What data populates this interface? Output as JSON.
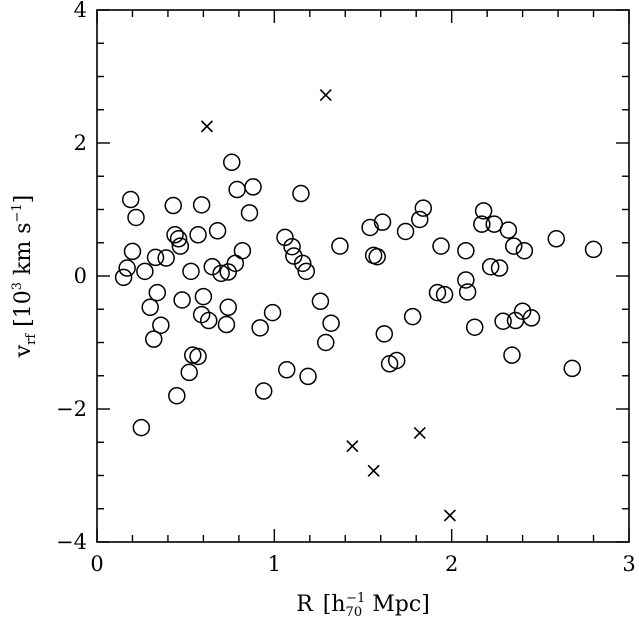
{
  "chart_data": {
    "type": "scatter",
    "xlabel_main": "R",
    "xlabel_unit_open": "[h",
    "xlabel_sub": "70",
    "xlabel_sup": "−1",
    "xlabel_unit_close": " Mpc]",
    "ylabel_main": "v",
    "ylabel_sub": "rf",
    "ylabel_unit_open": " [10",
    "ylabel_sup1": "3",
    "ylabel_unit_mid": " km s",
    "ylabel_sup2": "−1",
    "ylabel_unit_close": "]",
    "xlim": [
      0,
      3
    ],
    "ylim": [
      -4,
      4
    ],
    "x_major_ticks": [
      0,
      1,
      2,
      3
    ],
    "x_tick_labels": [
      "0",
      "1",
      "2",
      "3"
    ],
    "y_major_ticks": [
      -4,
      -2,
      0,
      2,
      4
    ],
    "y_tick_labels": [
      "−4",
      "−2",
      "0",
      "2",
      "4"
    ],
    "x_minor_step": 0.2,
    "y_minor_step": 0.5,
    "grid": false,
    "series": [
      {
        "marker": "circle",
        "points": [
          [
            0.15,
            -0.02
          ],
          [
            0.17,
            0.12
          ],
          [
            0.19,
            1.15
          ],
          [
            0.2,
            0.37
          ],
          [
            0.22,
            0.88
          ],
          [
            0.25,
            -2.28
          ],
          [
            0.27,
            0.07
          ],
          [
            0.3,
            -0.47
          ],
          [
            0.32,
            -0.95
          ],
          [
            0.33,
            0.28
          ],
          [
            0.34,
            -0.25
          ],
          [
            0.36,
            -0.74
          ],
          [
            0.39,
            0.27
          ],
          [
            0.43,
            1.06
          ],
          [
            0.44,
            0.62
          ],
          [
            0.45,
            -1.8
          ],
          [
            0.46,
            0.56
          ],
          [
            0.47,
            0.45
          ],
          [
            0.48,
            -0.36
          ],
          [
            0.52,
            -1.45
          ],
          [
            0.53,
            0.07
          ],
          [
            0.54,
            -1.19
          ],
          [
            0.57,
            -1.21
          ],
          [
            0.57,
            0.62
          ],
          [
            0.59,
            1.07
          ],
          [
            0.59,
            -0.58
          ],
          [
            0.6,
            -0.31
          ],
          [
            0.63,
            -0.67
          ],
          [
            0.65,
            0.14
          ],
          [
            0.68,
            0.68
          ],
          [
            0.7,
            0.04
          ],
          [
            0.73,
            -0.73
          ],
          [
            0.74,
            -0.47
          ],
          [
            0.74,
            0.06
          ],
          [
            0.76,
            1.71
          ],
          [
            0.78,
            0.19
          ],
          [
            0.79,
            1.3
          ],
          [
            0.82,
            0.38
          ],
          [
            0.86,
            0.95
          ],
          [
            0.88,
            1.34
          ],
          [
            0.92,
            -0.78
          ],
          [
            0.94,
            -1.73
          ],
          [
            0.99,
            -0.55
          ],
          [
            1.06,
            0.58
          ],
          [
            1.07,
            -1.41
          ],
          [
            1.1,
            0.44
          ],
          [
            1.11,
            0.3
          ],
          [
            1.15,
            1.24
          ],
          [
            1.16,
            0.19
          ],
          [
            1.18,
            0.07
          ],
          [
            1.19,
            -1.51
          ],
          [
            1.26,
            -0.38
          ],
          [
            1.29,
            -1.0
          ],
          [
            1.32,
            -0.71
          ],
          [
            1.37,
            0.45
          ],
          [
            1.54,
            0.73
          ],
          [
            1.56,
            0.31
          ],
          [
            1.58,
            0.29
          ],
          [
            1.61,
            0.81
          ],
          [
            1.62,
            -0.87
          ],
          [
            1.65,
            -1.32
          ],
          [
            1.69,
            -1.27
          ],
          [
            1.74,
            0.67
          ],
          [
            1.78,
            -0.61
          ],
          [
            1.82,
            0.85
          ],
          [
            1.84,
            1.02
          ],
          [
            1.92,
            -0.25
          ],
          [
            1.94,
            0.45
          ],
          [
            1.96,
            -0.28
          ],
          [
            2.08,
            0.38
          ],
          [
            2.08,
            -0.06
          ],
          [
            2.09,
            -0.24
          ],
          [
            2.13,
            -0.77
          ],
          [
            2.17,
            0.78
          ],
          [
            2.18,
            0.98
          ],
          [
            2.22,
            0.14
          ],
          [
            2.24,
            0.78
          ],
          [
            2.27,
            0.12
          ],
          [
            2.29,
            -0.68
          ],
          [
            2.32,
            0.69
          ],
          [
            2.34,
            -1.19
          ],
          [
            2.35,
            0.45
          ],
          [
            2.36,
            -0.67
          ],
          [
            2.4,
            -0.53
          ],
          [
            2.41,
            0.38
          ],
          [
            2.45,
            -0.63
          ],
          [
            2.59,
            0.56
          ],
          [
            2.68,
            -1.39
          ],
          [
            2.8,
            0.4
          ]
        ]
      },
      {
        "marker": "cross",
        "points": [
          [
            0.62,
            2.25
          ],
          [
            1.29,
            2.72
          ],
          [
            1.44,
            -2.56
          ],
          [
            1.56,
            -2.93
          ],
          [
            1.82,
            -2.36
          ],
          [
            1.99,
            -3.6
          ]
        ]
      }
    ]
  }
}
